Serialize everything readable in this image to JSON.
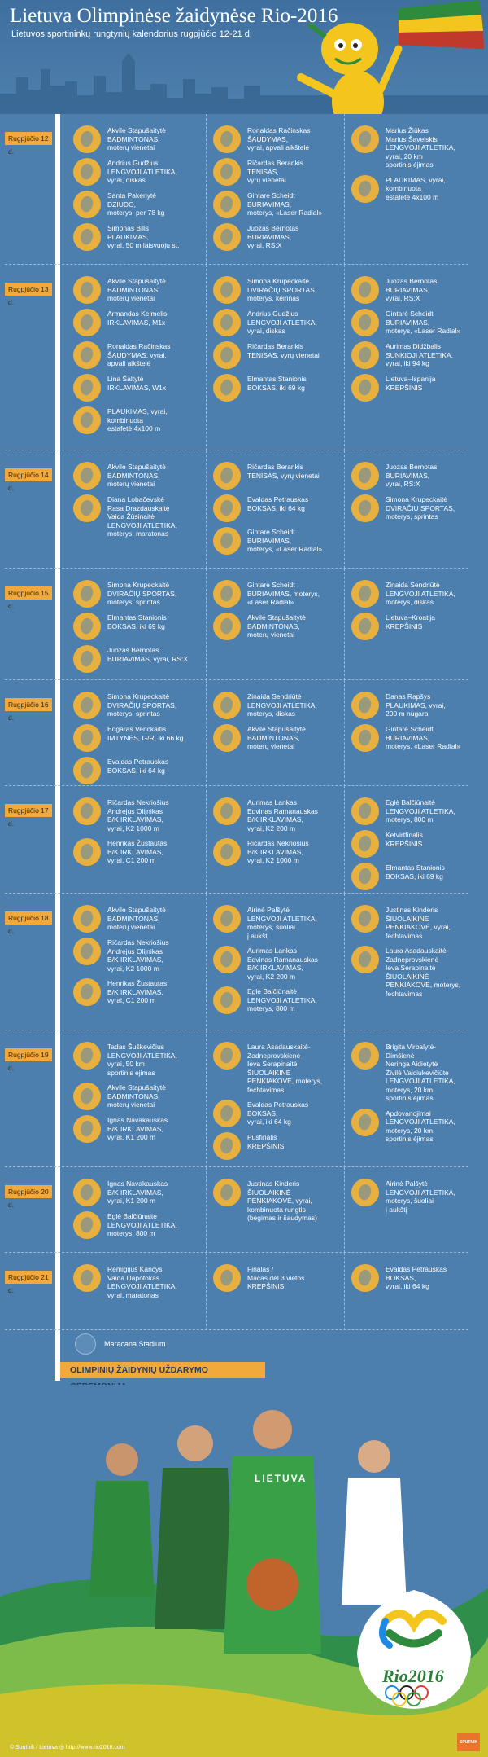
{
  "header": {
    "title": "Lietuva Olimpinėse žaidynėse Rio-2016",
    "subtitle": "Lietuvos sportininkų rungtynių kalendorius rugpjūčio 12-21 d."
  },
  "days": [
    {
      "label": "Rugpjūčio 12 d.",
      "events": [
        [
          "Akvilė Stapušaitytė\nBADMINTONAS,\nmoterų vienetai",
          "Andrius Gudžius\nLENGVOJI ATLETIKA,\nvyrai, diskas",
          "Santa Pakenytė\nDZIUDO,\nmoterys, per 78 kg",
          "Simonas Bilis\nPLAUKIMAS,\nvyrai, 50 m laisvuoju st."
        ],
        [
          "Ronaldas Račinskas\nŠAUDYMAS,\nvyrai, apvali aikštelė",
          "Ričardas Berankis\nTENISAS,\nvyrų vienetai",
          "Gintarė Scheidt\nBURIAVIMAS,\nmoterys, «Laser Radial»",
          "Juozas Bernotas\nBURIAVIMAS,\nvyrai, RS:X"
        ],
        [
          "Marius Žiūkas\nMarius Šavelskis\nLENGVOJI ATLETIKA,\nvyrai, 20 km\nsportinis ėjimas",
          "PLAUKIMAS, vyrai,\nkombinuota\nestafetė 4x100 m"
        ]
      ]
    },
    {
      "label": "Rugpjūčio 13 d.",
      "events": [
        [
          "Akvilė Stapušaitytė\nBADMINTONAS,\nmoterų vienetai",
          "Armandas Kelmelis\nIRKLAVIMAS, M1x",
          "Ronaldas Račinskas\nŠAUDYMAS, vyrai,\napvali aikštelė",
          "Lina Šaltytė\nIRKLAVIMAS, W1x",
          "PLAUKIMAS, vyrai,\nkombinuota\nestafetė 4x100 m"
        ],
        [
          "Simona Krupeckaitė\nDVIRAČIŲ SPORTAS,\nmoterys, keirinas",
          "Andrius Gudžius\nLENGVOJI ATLETIKA,\nvyrai, diskas",
          "Ričardas Berankis\nTENISAS, vyrų vienetai",
          "Elmantas Stanionis\nBOKSAS, iki 69 kg"
        ],
        [
          "Juozas Bernotas\nBURIAVIMAS,\nvyrai, RS:X",
          "Gintarė Scheidt\nBURIAVIMAS,\nmoterys, «Laser Radial»",
          "Aurimas Didžbalis\nSUNKIOJI ATLETIKA,\nvyrai, iki 94 kg",
          "Lietuva–Ispanija\nKREPŠINIS"
        ]
      ]
    },
    {
      "label": "Rugpjūčio 14 d.",
      "events": [
        [
          "Akvilė Stapušaitytė\nBADMINTONAS,\nmoterų vienetai",
          "Diana Lobačevskė\nRasa Drazdauskaitė\nVaida Žūsinaitė\nLENGVOJI ATLETIKA,\nmoterys, maratonas"
        ],
        [
          "Ričardas Berankis\nTENISAS, vyrų vienetai",
          "Evaldas Petrauskas\nBOKSAS, iki 64 kg",
          "Gintarė Scheidt\nBURIAVIMAS,\nmoterys, «Laser Radial»"
        ],
        [
          "Juozas Bernotas\nBURIAVIMAS,\nvyrai, RS:X",
          "Simona Krupeckaitė\nDVIRAČIŲ SPORTAS,\nmoterys, sprintas"
        ]
      ]
    },
    {
      "label": "Rugpjūčio 15 d.",
      "events": [
        [
          "Simona Krupeckaitė\nDVIRAČIŲ SPORTAS,\nmoterys, sprintas",
          "Elmantas Stanionis\nBOKSAS, iki 69 kg",
          "Juozas Bernotas\nBURIAVIMAS, vyrai, RS:X"
        ],
        [
          "Gintarė Scheidt\nBURIAVIMAS, moterys,\n«Laser Radial»",
          "Akvilė Stapušaitytė\nBADMINTONAS,\nmoterų vienetai"
        ],
        [
          "Zinaida Sendriūtė\nLENGVOJI ATLETIKA,\nmoterys, diskas",
          "Lietuva–Kroatija\nKREPŠINIS"
        ]
      ]
    },
    {
      "label": "Rugpjūčio 16 d.",
      "events": [
        [
          "Simona Krupeckaitė\nDVIRAČIŲ SPORTAS,\nmoterys, sprintas",
          "Edgaras Venckaitis\nIMTYNĖS, G/R, iki 66 kg",
          "Evaldas Petrauskas\nBOKSAS, iki 64 kg"
        ],
        [
          "Zinaida Sendriūtė\nLENGVOJI ATLETIKA,\nmoterys, diskas",
          "Akvilė Stapušaitytė\nBADMINTONAS,\nmoterų vienetai"
        ],
        [
          "Danas Rapšys\nPLAUKIMAS, vyrai,\n200 m nugara",
          "Gintarė Scheidt\nBURIAVIMAS,\nmoterys, «Laser Radial»"
        ]
      ]
    },
    {
      "label": "Rugpjūčio 17 d.",
      "events": [
        [
          "Ričardas Nekriošius\nAndrejus Olijnikas\nB/K IRKLAVIMAS,\nvyrai, K2 1000 m",
          "Henrikas Žustautas\nB/K IRKLAVIMAS,\nvyrai, C1 200 m"
        ],
        [
          "Aurimas Lankas\nEdvinas Ramanauskas\nB/K IRKLAVIMAS,\nvyrai, K2 200 m",
          "Ričardas Nekriošius\nB/K IRKLAVIMAS,\nvyrai, K2 1000 m"
        ],
        [
          "Eglė Balčiūnaitė\nLENGVOJI ATLETIKA,\nmoterys, 800 m",
          "Ketvirtfinalis\nKREPŠINIS",
          "Elmantas Stanionis\nBOKSAS, iki 69 kg"
        ]
      ]
    },
    {
      "label": "Rugpjūčio 18 d.",
      "events": [
        [
          "Akvilė Stapušaitytė\nBADMINTONAS,\nmoterų vienetai",
          "Ričardas Nekriošius\nAndrejus Olijnikas\nB/K IRKLAVIMAS,\nvyrai, K2 1000 m",
          "Henrikas Žustautas\nB/K IRKLAVIMAS,\nvyrai, C1 200 m"
        ],
        [
          "Airinė Palšytė\nLENGVOJI ATLETIKA,\nmoterys, šuoliai\nį aukštį",
          "Aurimas Lankas\nEdvinas Ramanauskas\nB/K IRKLAVIMAS,\nvyrai, K2 200 m",
          "Eglė Balčiūnaitė\nLENGVOJI ATLETIKA,\nmoterys, 800 m"
        ],
        [
          "Justinas Kinderis\nŠIUOLAIKINĖ\nPENKIAKOVĖ, vyrai,\nfechtavimas",
          "Laura Asadauskaitė-\nZadneprovskienė\nIeva Serapinaitė\nŠIUOLAIKINĖ\nPENKIAKOVĖ, moterys,\nfechtavimas"
        ]
      ]
    },
    {
      "label": "Rugpjūčio 19 d.",
      "events": [
        [
          "Tadas Šuškevičius\nLENGVOJI ATLETIKA,\nvyrai, 50 km\nsportinis ėjimas",
          "Akvilė Stapušaitytė\nBADMINTONAS,\nmoterų vienetai",
          "Ignas Navakauskas\nB/K IRKLAVIMAS,\nvyrai, K1 200 m"
        ],
        [
          "Laura Asadauskaitė-\nZadneprovskienė\nIeva Serapinaitė\nŠIUOLAIKINĖ\nPENKIAKOVĖ, moterys,\nfechtavimas",
          "Evaldas Petrauskas\nBOKSAS,\nvyrai, iki 64 kg",
          "Pusfinalis\nKREPŠINIS"
        ],
        [
          "Brigita Virbalytė-\nDimšienė\nNeringa Aidietytė\nŽivilė Vaiciukevičiūtė\nLENGVOJI ATLETIKA,\nmoterys, 20 km\nsportinis ėjimas",
          "Apdovanojimai\nLENGVOJI ATLETIKA,\nmoterys, 20 km\nsportinis ėjimas"
        ]
      ]
    },
    {
      "label": "Rugpjūčio 20 d.",
      "events": [
        [
          "Ignas Navakauskas\nB/K IRKLAVIMAS,\nvyrai, K1 200 m",
          "Eglė Balčiūnaitė\nLENGVOJI ATLETIKA,\nmoterys, 800 m"
        ],
        [
          "Justinas Kinderis\nŠIUOLAIKINĖ\nPENKIAKOVĖ, vyrai,\nkombinuota rungtis\n(bėgimas ir šaudymas)"
        ],
        [
          "Airinė Palšytė\nLENGVOJI ATLETIKA,\nmoterys, šuoliai\nį aukštį"
        ]
      ]
    },
    {
      "label": "Rugpjūčio 21 d.",
      "events": [
        [
          "Remigijus Kančys\nVaida Dapotokas\nLENGVOJI ATLETIKA,\nvyrai, maratonas"
        ],
        [
          "Finalas /\nMačas dėl 3 vietos\nKREPŠINIS"
        ],
        [
          "Evaldas Petrauskas\nBOKSAS,\nvyrai, iki 64 kg"
        ]
      ]
    }
  ],
  "closing": {
    "venue": "Maracana Stadium",
    "banner": "OLIMPINIŲ ŽAIDYNIŲ UŽDARYMO CEREMONIJA"
  },
  "jersey_text": "LIETUVA",
  "logo": {
    "text": "Rio2016"
  },
  "footer": {
    "credit": "© Sputnik / Lietuva  ◎ http://www.rio2016.com",
    "badge": "SPUTNIK"
  },
  "colors": {
    "background": "#4a7aa8",
    "accent": "#f2a93b",
    "icon": "#e7b03f",
    "green": "#2f8f4a"
  }
}
